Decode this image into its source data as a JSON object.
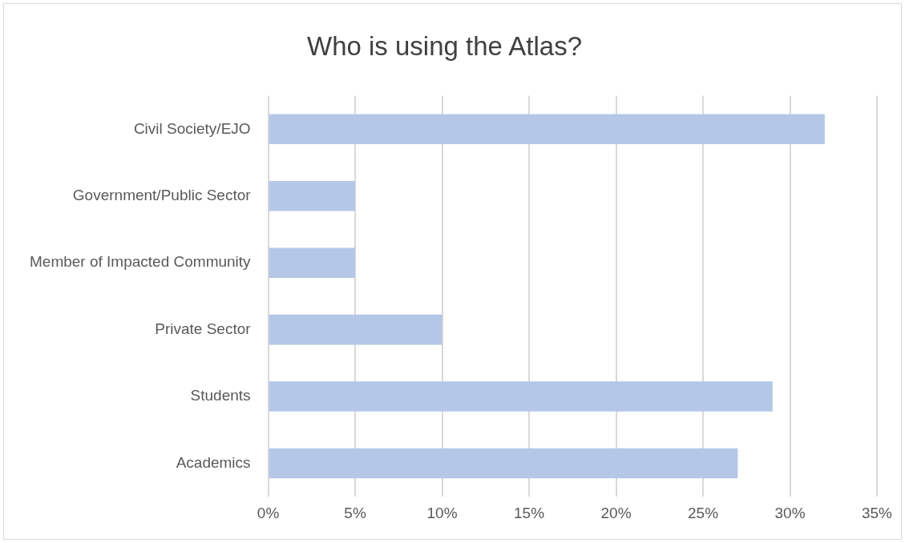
{
  "chart_data": {
    "type": "bar",
    "orientation": "horizontal",
    "title": "Who is using the Atlas?",
    "categories": [
      "Civil Society/EJO",
      "Government/Public Sector",
      "Member of Impacted Community",
      "Private Sector",
      "Students",
      "Academics"
    ],
    "values": [
      32,
      5,
      5,
      10,
      29,
      27
    ],
    "color": "#b4c7e7",
    "xlim": [
      0,
      35
    ],
    "xticks": [
      {
        "value": 0,
        "label": "0%"
      },
      {
        "value": 5,
        "label": "5%"
      },
      {
        "value": 10,
        "label": "10%"
      },
      {
        "value": 15,
        "label": "15%"
      },
      {
        "value": 20,
        "label": "20%"
      },
      {
        "value": 25,
        "label": "25%"
      },
      {
        "value": 30,
        "label": "30%"
      },
      {
        "value": 35,
        "label": "35%"
      }
    ],
    "grid": "x",
    "legend": false
  }
}
